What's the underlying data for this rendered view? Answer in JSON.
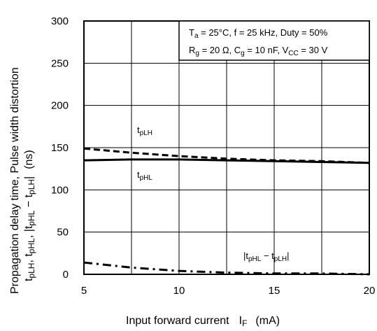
{
  "chart_data": {
    "type": "line",
    "xlabel": "Input forward current",
    "xlabel_symbol": "I",
    "xlabel_symbol_sub": "F",
    "xlabel_unit": "(mA)",
    "ylabel_line1": "Propagation delay time, Pulse width distortion",
    "ylabel_line2": {
      "t1": "t",
      "s1": "pLH",
      "sep1": ", ",
      "t2": "t",
      "s2": "pHL",
      "sep2": ", |",
      "t3": "t",
      "s3": "pHL",
      "minus": " − ",
      "t4": "t",
      "s4": "pLH",
      "end": "|",
      "unit": "(ns)"
    },
    "xlim": [
      5,
      20
    ],
    "ylim": [
      0,
      300
    ],
    "x_ticks": [
      5,
      10,
      15,
      20
    ],
    "y_ticks": [
      0,
      50,
      100,
      150,
      200,
      250,
      300
    ],
    "x_grid": [
      5,
      7.5,
      10,
      12.5,
      15,
      17.5,
      20
    ],
    "y_grid": [
      0,
      50,
      100,
      150,
      200,
      250,
      300
    ],
    "grid": true,
    "conditions": {
      "line1": {
        "ta": "T",
        "ta_sub": "a",
        "rest": " = 25°C, f = 25 kHz, Duty = 50%"
      },
      "line2": {
        "rg": "R",
        "rg_sub": "g",
        "rg_rest": " = 20 Ω, C",
        "cg_sub": "g",
        "cg_rest": " = 10 nF, V",
        "vcc_sub": "CC",
        "vcc_rest": " = 30 V"
      }
    },
    "series": [
      {
        "name": "tpLH",
        "style": "dashed",
        "x": [
          5,
          7.5,
          10,
          12.5,
          15,
          17.5,
          20
        ],
        "y": [
          149,
          144,
          140,
          137,
          135,
          134,
          132
        ]
      },
      {
        "name": "tpHL",
        "style": "solid",
        "x": [
          5,
          7.5,
          10,
          12.5,
          15,
          17.5,
          20
        ],
        "y": [
          135,
          136,
          136,
          135,
          134,
          133,
          132
        ]
      },
      {
        "name": "|tpHL − tpLH|",
        "style": "dash-dot",
        "x": [
          5,
          7.5,
          10,
          12.5,
          15,
          17.5,
          20
        ],
        "y": [
          14,
          8,
          4,
          2,
          1,
          1,
          0
        ]
      }
    ],
    "annotations": [
      {
        "series": "tpLH",
        "text": "t",
        "sub": "pLH"
      },
      {
        "series": "tpHL",
        "text": "t",
        "sub": "pHL"
      },
      {
        "series": "|tpHL − tpLH|",
        "pre": "|t",
        "sub1": "pHL",
        "mid": "  −  t",
        "sub2": "pLH",
        "post": "|"
      }
    ]
  }
}
